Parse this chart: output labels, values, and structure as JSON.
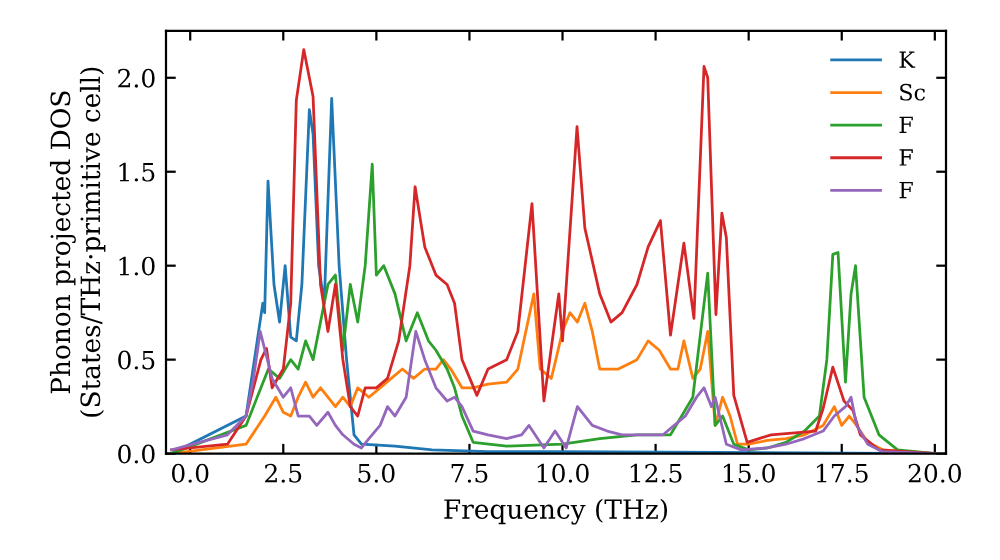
{
  "chart_data": {
    "type": "line",
    "xlabel": "Frequency (THz)",
    "ylabel": "Phonon projected DOS\n(States/THz·primitive cell)",
    "xlim": [
      -0.65,
      20.3
    ],
    "ylim": [
      0,
      2.25
    ],
    "xticks": [
      {
        "value": 0,
        "label": "0.0"
      },
      {
        "value": 2.5,
        "label": "2.5"
      },
      {
        "value": 5,
        "label": "5.0"
      },
      {
        "value": 7.5,
        "label": "7.5"
      },
      {
        "value": 10,
        "label": "10.0"
      },
      {
        "value": 12.5,
        "label": "12.5"
      },
      {
        "value": 15,
        "label": "15.0"
      },
      {
        "value": 17.5,
        "label": "17.5"
      },
      {
        "value": 20,
        "label": "20.0"
      }
    ],
    "yticks": [
      {
        "value": 0,
        "label": "0.0"
      },
      {
        "value": 0.5,
        "label": "0.5"
      },
      {
        "value": 1,
        "label": "1.0"
      },
      {
        "value": 1.5,
        "label": "1.5"
      },
      {
        "value": 2,
        "label": "2.0"
      }
    ],
    "grid": false,
    "legend": "top right",
    "marker": "none",
    "line_style": "solid",
    "series": [
      {
        "name": "K",
        "color": "#1f77b4",
        "x": [
          -0.5,
          1.5,
          1.8,
          1.95,
          2.0,
          2.09,
          2.25,
          2.4,
          2.55,
          2.7,
          2.85,
          3.0,
          3.2,
          3.3,
          3.45,
          3.6,
          3.8,
          4.0,
          4.2,
          4.4,
          4.6,
          5.5,
          6.5,
          8,
          10,
          20
        ],
        "values": [
          0.0,
          0.2,
          0.6,
          0.8,
          0.75,
          1.45,
          0.9,
          0.7,
          1.0,
          0.62,
          0.6,
          0.9,
          1.83,
          1.7,
          1.0,
          0.8,
          1.89,
          1.0,
          0.5,
          0.1,
          0.05,
          0.04,
          0.02,
          0.01,
          0.01,
          0.0
        ]
      },
      {
        "name": "Sc",
        "color": "#ff7f0e",
        "x": [
          -0.5,
          1.5,
          2.0,
          2.3,
          2.5,
          2.7,
          2.9,
          3.1,
          3.3,
          3.5,
          3.7,
          3.9,
          4.1,
          4.3,
          4.5,
          4.8,
          5.1,
          5.4,
          5.7,
          6.0,
          6.3,
          6.6,
          6.8,
          7.0,
          7.3,
          7.6,
          8.0,
          8.5,
          8.8,
          9.23,
          9.4,
          9.7,
          10.0,
          10.2,
          10.4,
          10.6,
          10.8,
          11.0,
          11.5,
          12.0,
          12.3,
          12.6,
          12.9,
          13.1,
          13.26,
          13.5,
          13.7,
          13.9,
          14.1,
          14.3,
          14.5,
          14.7,
          15.0,
          15.5,
          16.0,
          16.5,
          17.0,
          17.3,
          17.5,
          17.7,
          17.9,
          18.2,
          18.6,
          20
        ],
        "values": [
          0.0,
          0.05,
          0.2,
          0.3,
          0.22,
          0.2,
          0.3,
          0.38,
          0.3,
          0.35,
          0.3,
          0.25,
          0.3,
          0.25,
          0.35,
          0.3,
          0.35,
          0.4,
          0.45,
          0.4,
          0.45,
          0.45,
          0.5,
          0.45,
          0.35,
          0.35,
          0.37,
          0.38,
          0.45,
          0.85,
          0.45,
          0.4,
          0.65,
          0.75,
          0.7,
          0.8,
          0.65,
          0.45,
          0.45,
          0.5,
          0.6,
          0.55,
          0.45,
          0.45,
          0.6,
          0.4,
          0.45,
          0.65,
          0.15,
          0.3,
          0.2,
          0.05,
          0.05,
          0.07,
          0.08,
          0.1,
          0.15,
          0.25,
          0.15,
          0.2,
          0.15,
          0.06,
          0.02,
          0.0
        ]
      },
      {
        "name": "F",
        "color": "#2ca02c",
        "x": [
          -0.5,
          1.5,
          1.9,
          2.1,
          2.4,
          2.7,
          2.9,
          3.1,
          3.3,
          3.5,
          3.7,
          3.9,
          4.1,
          4.3,
          4.5,
          4.7,
          4.89,
          5.0,
          5.2,
          5.5,
          5.8,
          6.1,
          6.4,
          6.6,
          6.9,
          7.1,
          7.3,
          7.6,
          8.5,
          10.0,
          11.0,
          12.0,
          12.9,
          13.2,
          13.5,
          13.9,
          14.1,
          14.3,
          14.6,
          15.0,
          15.5,
          16.0,
          16.5,
          16.9,
          17.1,
          17.26,
          17.4,
          17.6,
          17.75,
          17.87,
          18.1,
          18.5,
          19.0,
          20
        ],
        "values": [
          0.0,
          0.15,
          0.35,
          0.45,
          0.4,
          0.5,
          0.45,
          0.6,
          0.5,
          0.7,
          0.9,
          0.95,
          0.55,
          0.9,
          0.7,
          1.0,
          1.54,
          0.95,
          1.0,
          0.85,
          0.6,
          0.75,
          0.6,
          0.55,
          0.45,
          0.35,
          0.2,
          0.06,
          0.04,
          0.05,
          0.08,
          0.1,
          0.1,
          0.2,
          0.3,
          0.96,
          0.15,
          0.2,
          0.05,
          0.02,
          0.03,
          0.06,
          0.12,
          0.2,
          0.5,
          1.06,
          1.07,
          0.38,
          0.85,
          1.0,
          0.3,
          0.1,
          0.02,
          0.0
        ]
      },
      {
        "name": "F",
        "color": "#d62728",
        "x": [
          -0.5,
          1.0,
          1.5,
          1.9,
          2.05,
          2.2,
          2.5,
          2.7,
          2.85,
          3.05,
          3.3,
          3.5,
          3.7,
          3.9,
          4.1,
          4.3,
          4.5,
          4.7,
          5.0,
          5.3,
          5.6,
          5.9,
          6.04,
          6.3,
          6.6,
          6.9,
          7.1,
          7.3,
          7.7,
          8.0,
          8.5,
          8.8,
          9.18,
          9.5,
          9.9,
          10.0,
          10.39,
          10.6,
          11.0,
          11.3,
          11.6,
          12.0,
          12.3,
          12.63,
          12.9,
          13.26,
          13.53,
          13.8,
          13.9,
          14.12,
          14.28,
          14.4,
          14.6,
          14.96,
          15.6,
          16.8,
          17.0,
          17.26,
          17.56,
          17.8,
          18.0,
          18.5,
          20
        ],
        "values": [
          0.02,
          0.05,
          0.2,
          0.5,
          0.56,
          0.35,
          0.45,
          0.8,
          1.88,
          2.15,
          1.9,
          0.9,
          0.65,
          0.9,
          0.5,
          0.25,
          0.2,
          0.35,
          0.35,
          0.4,
          0.6,
          1.0,
          1.42,
          1.1,
          0.95,
          0.9,
          0.8,
          0.5,
          0.31,
          0.45,
          0.5,
          0.65,
          1.33,
          0.28,
          0.85,
          0.6,
          1.74,
          1.2,
          0.85,
          0.7,
          0.75,
          0.9,
          1.1,
          1.24,
          0.63,
          1.12,
          0.72,
          2.06,
          2.0,
          0.74,
          1.28,
          1.15,
          0.31,
          0.06,
          0.1,
          0.12,
          0.24,
          0.46,
          0.28,
          0.23,
          0.1,
          0.02,
          0.0
        ]
      },
      {
        "name": "F",
        "color": "#9467bd",
        "x": [
          -0.5,
          1.0,
          1.5,
          1.7,
          1.88,
          2.2,
          2.5,
          2.7,
          2.9,
          3.2,
          3.4,
          3.7,
          3.9,
          4.1,
          4.4,
          4.6,
          4.8,
          5.1,
          5.3,
          5.5,
          5.8,
          6.06,
          6.3,
          6.6,
          6.9,
          7.1,
          7.3,
          7.6,
          8.0,
          8.5,
          8.9,
          9.1,
          9.5,
          9.8,
          10.1,
          10.4,
          10.8,
          11.2,
          11.6,
          12.2,
          12.7,
          13.0,
          13.3,
          13.6,
          13.8,
          14.0,
          14.1,
          14.4,
          14.8,
          15.5,
          16.0,
          16.5,
          17.0,
          17.3,
          17.6,
          17.75,
          17.9,
          18.2,
          18.6,
          20
        ],
        "values": [
          0.02,
          0.1,
          0.2,
          0.4,
          0.65,
          0.4,
          0.3,
          0.35,
          0.2,
          0.2,
          0.15,
          0.22,
          0.15,
          0.1,
          0.05,
          0.03,
          0.08,
          0.15,
          0.25,
          0.2,
          0.3,
          0.65,
          0.5,
          0.35,
          0.28,
          0.3,
          0.25,
          0.12,
          0.1,
          0.08,
          0.1,
          0.15,
          0.03,
          0.12,
          0.03,
          0.25,
          0.15,
          0.12,
          0.1,
          0.1,
          0.1,
          0.15,
          0.2,
          0.3,
          0.35,
          0.25,
          0.3,
          0.05,
          0.02,
          0.03,
          0.05,
          0.08,
          0.12,
          0.2,
          0.25,
          0.3,
          0.15,
          0.05,
          0.01,
          0.0
        ]
      }
    ]
  }
}
